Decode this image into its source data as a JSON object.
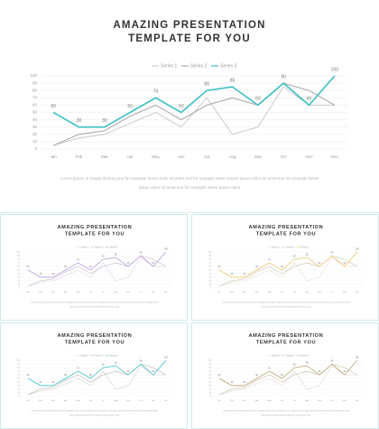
{
  "chart_data": [
    {
      "type": "line",
      "title": [
        "AMAZING PRESENTATION",
        "TEMPLATE FOR YOU"
      ],
      "categories": [
        "Jan",
        "Feb",
        "Mar",
        "Apr",
        "May",
        "Jun",
        "Jul",
        "Aug",
        "Sep",
        "Oct",
        "Nov",
        "Dec"
      ],
      "series": [
        {
          "name": "Series 1",
          "color": "#cfcfcf",
          "values": [
            5,
            15,
            20,
            35,
            50,
            30,
            70,
            20,
            30,
            85,
            60,
            60
          ]
        },
        {
          "name": "Series 2",
          "color": "#ababab",
          "values": [
            5,
            20,
            25,
            45,
            60,
            40,
            60,
            70,
            60,
            90,
            80,
            60
          ]
        },
        {
          "name": "Series 3",
          "color": "#3bbfc6",
          "values": [
            50,
            30,
            30,
            50,
            70,
            50,
            80,
            85,
            60,
            90,
            60,
            100
          ],
          "data_labels": true
        }
      ],
      "ylim": [
        0,
        100
      ],
      "yticks": [
        0,
        10,
        20,
        30,
        40,
        50,
        60,
        70,
        80,
        90,
        100
      ],
      "grid": true,
      "caption": "Lorem Ipsum is simply dummy text for example lorem dolor sit amet text for example lorem ipsum ipsum dolor sit amet text for example lorem ipsum dolor sit amet text for example lorem ipsum dolor"
    },
    {
      "type": "line",
      "title": [
        "AMAZING PRESENTATION",
        "TEMPLATE FOR YOU"
      ],
      "categories": [
        "Jan",
        "Feb",
        "Mar",
        "Apr",
        "May",
        "Jun",
        "Jul",
        "Aug",
        "Sep",
        "Oct",
        "Nov",
        "Dec"
      ],
      "series": [
        {
          "name": "Series 1",
          "color": "#d8d0e2",
          "values": [
            5,
            15,
            20,
            35,
            50,
            30,
            70,
            20,
            30,
            85,
            60,
            60
          ]
        },
        {
          "name": "Series 2",
          "color": "#b9b0c6",
          "values": [
            5,
            20,
            25,
            45,
            60,
            40,
            60,
            70,
            60,
            90,
            80,
            60
          ]
        },
        {
          "name": "Series 3",
          "color": "#b79ad8",
          "values": [
            50,
            30,
            30,
            50,
            70,
            50,
            80,
            85,
            60,
            90,
            60,
            100
          ],
          "data_labels": true
        }
      ],
      "ylim": [
        0,
        100
      ],
      "yticks": [
        0,
        10,
        20,
        30,
        40,
        50,
        60,
        70,
        80,
        90,
        100
      ],
      "grid": true,
      "caption": "Lorem Ipsum is simply dummy text for example lorem dolor sit amet text for example lorem ipsum ipsum dolor sit amet text for example lorem ipsum dolor sit amet text for example lorem ipsum dolor"
    },
    {
      "type": "line",
      "title": [
        "AMAZING PRESENTATION",
        "TEMPLATE FOR YOU"
      ],
      "categories": [
        "Jan",
        "Feb",
        "Mar",
        "Apr",
        "May",
        "Jun",
        "Jul",
        "Aug",
        "Sep",
        "Oct",
        "Nov",
        "Dec"
      ],
      "series": [
        {
          "name": "Series 1",
          "color": "#e4dcc8",
          "values": [
            5,
            15,
            20,
            35,
            50,
            30,
            70,
            20,
            30,
            85,
            60,
            60
          ]
        },
        {
          "name": "Series 2",
          "color": "#c7bfae",
          "values": [
            5,
            20,
            25,
            45,
            60,
            40,
            60,
            70,
            60,
            90,
            80,
            60
          ]
        },
        {
          "name": "Series 3",
          "color": "#e8c66a",
          "values": [
            50,
            30,
            30,
            50,
            70,
            50,
            80,
            85,
            60,
            90,
            60,
            100
          ],
          "data_labels": true
        }
      ],
      "ylim": [
        0,
        100
      ],
      "yticks": [
        0,
        10,
        20,
        30,
        40,
        50,
        60,
        70,
        80,
        90,
        100
      ],
      "grid": true,
      "caption": "Lorem Ipsum is simply dummy text for example lorem dolor sit amet text for example lorem ipsum ipsum dolor sit amet text for example lorem ipsum dolor sit amet text for example lorem ipsum dolor"
    },
    {
      "type": "line",
      "title": [
        "AMAZING PRESENTATION",
        "TEMPLATE FOR YOU"
      ],
      "categories": [
        "Jan",
        "Feb",
        "Mar",
        "Apr",
        "May",
        "Jun",
        "Jul",
        "Aug",
        "Sep",
        "Oct",
        "Nov",
        "Dec"
      ],
      "series": [
        {
          "name": "Series 1",
          "color": "#cfcfcf",
          "values": [
            5,
            15,
            20,
            35,
            50,
            30,
            70,
            20,
            30,
            85,
            60,
            60
          ]
        },
        {
          "name": "Series 2",
          "color": "#ababab",
          "values": [
            5,
            20,
            25,
            45,
            60,
            40,
            60,
            70,
            60,
            90,
            80,
            60
          ]
        },
        {
          "name": "Series 3",
          "color": "#3bbfc6",
          "values": [
            50,
            30,
            30,
            50,
            70,
            50,
            80,
            85,
            60,
            90,
            60,
            100
          ],
          "data_labels": true
        }
      ],
      "ylim": [
        0,
        100
      ],
      "yticks": [
        0,
        10,
        20,
        30,
        40,
        50,
        60,
        70,
        80,
        90,
        100
      ],
      "grid": true,
      "caption": "Lorem Ipsum is simply dummy text for example lorem dolor sit amet text for example lorem ipsum ipsum dolor sit amet text for example lorem ipsum dolor sit amet text for example lorem ipsum dolor"
    },
    {
      "type": "line",
      "title": [
        "AMAZING PRESENTATION",
        "TEMPLATE FOR YOU"
      ],
      "categories": [
        "Jan",
        "Feb",
        "Mar",
        "Apr",
        "May",
        "Jun",
        "Jul",
        "Aug",
        "Sep",
        "Oct",
        "Nov",
        "Dec"
      ],
      "series": [
        {
          "name": "Series 1",
          "color": "#dcd6c6",
          "values": [
            5,
            15,
            20,
            35,
            50,
            30,
            70,
            20,
            30,
            85,
            60,
            60
          ]
        },
        {
          "name": "Series 2",
          "color": "#bdb6a4",
          "values": [
            5,
            20,
            25,
            45,
            60,
            40,
            60,
            70,
            60,
            90,
            80,
            60
          ]
        },
        {
          "name": "Series 3",
          "color": "#b9a46c",
          "values": [
            50,
            30,
            30,
            50,
            70,
            50,
            80,
            85,
            60,
            90,
            60,
            100
          ],
          "data_labels": true
        }
      ],
      "ylim": [
        0,
        100
      ],
      "yticks": [
        0,
        10,
        20,
        30,
        40,
        50,
        60,
        70,
        80,
        90,
        100
      ],
      "grid": true,
      "caption": "Lorem Ipsum is simply dummy text for example lorem dolor sit amet text for example lorem ipsum ipsum dolor sit amet text for example lorem ipsum dolor sit amet text for example lorem ipsum dolor"
    }
  ]
}
